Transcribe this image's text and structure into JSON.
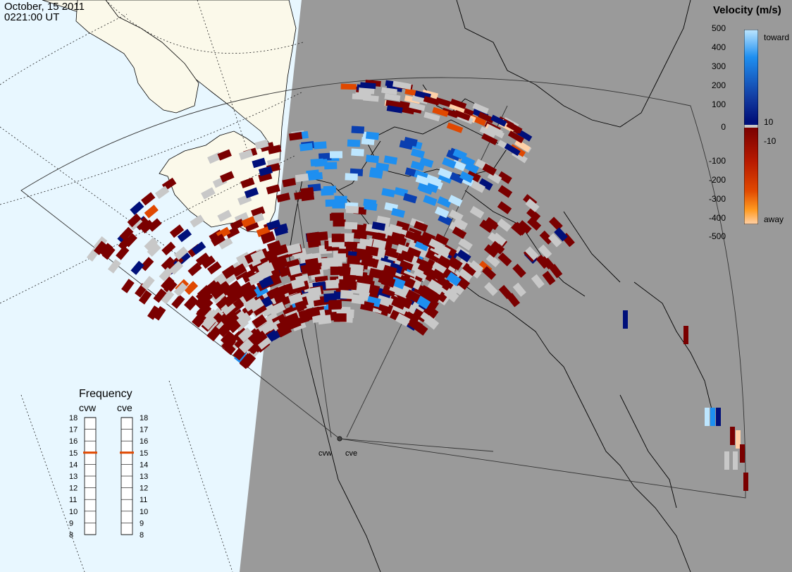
{
  "header": {
    "date": "October, 15 2011",
    "time": "0221:00 UT"
  },
  "radars": {
    "west": "cvw",
    "east": "cve"
  },
  "colorbar": {
    "title": "Velocity (m/s)",
    "top_label": "toward",
    "bottom_label": "away",
    "ticks": [
      "500",
      "400",
      "300",
      "200",
      "100",
      "10",
      "0",
      "-10",
      "-100",
      "-200",
      "-300",
      "-400",
      "-500"
    ],
    "colors": {
      "toward_light": "#bde6ff",
      "toward_mid": "#1e8ff0",
      "toward_dark": "#00107a",
      "zero": "#c8c8c8",
      "away_dark": "#7a0000",
      "away_mid": "#e04800",
      "away_light": "#ffd1a8"
    }
  },
  "frequency_panel": {
    "title": "Frequency",
    "labels": [
      "cvw",
      "cve"
    ],
    "scale": [
      "18",
      "17",
      "16",
      "15",
      "14",
      "13",
      "12",
      "11",
      "10",
      "9",
      "8"
    ],
    "selected_mhz": [
      15,
      15
    ],
    "marker_color": "#e04800"
  },
  "map_colors": {
    "land_day": "#fbf9ea",
    "ocean_day": "#e8f7ff",
    "night": "#9a9a9a",
    "ground_scatter": "#c8c8c8"
  }
}
